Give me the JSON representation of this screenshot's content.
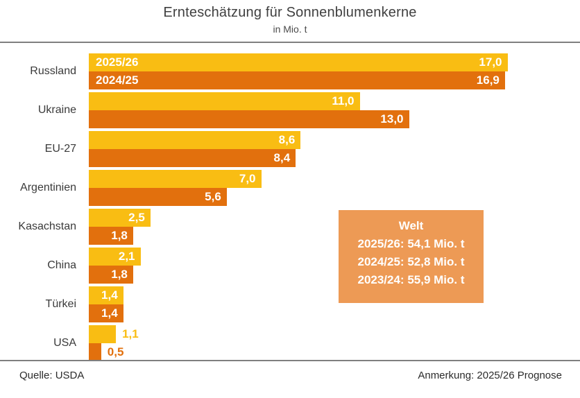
{
  "header": {
    "title": "Ernteschätzung für Sonnenblumenkerne",
    "subtitle": "in Mio. t"
  },
  "chart_data": {
    "type": "bar",
    "orientation": "horizontal",
    "title": "Ernteschätzung für Sonnenblumenkerne",
    "subtitle": "in Mio. t",
    "unit": "Mio. t",
    "categories": [
      "Russland",
      "Ukraine",
      "EU-27",
      "Argentinien",
      "Kasachstan",
      "China",
      "Türkei",
      "USA"
    ],
    "series": [
      {
        "name": "2025/26",
        "color": "#f9bd13",
        "values": [
          17.0,
          11.0,
          8.6,
          7.0,
          2.5,
          2.1,
          1.4,
          1.1
        ],
        "labels": [
          "17,0",
          "11,0",
          "8,6",
          "7,0",
          "2,5",
          "2,1",
          "1,4",
          "1,1"
        ]
      },
      {
        "name": "2024/25",
        "color": "#e2700d",
        "values": [
          16.9,
          13.0,
          8.4,
          5.6,
          1.8,
          1.8,
          1.4,
          0.5
        ],
        "labels": [
          "16,9",
          "13,0",
          "8,4",
          "5,6",
          "1,8",
          "1,8",
          "1,4",
          "0,5"
        ]
      }
    ],
    "xlim": [
      0,
      20
    ],
    "grid": false,
    "legend": "series names printed inside first category bars",
    "value_labels": "at bar end, white inside bar; in series color outside when bar too short"
  },
  "annotation_box": {
    "title": "Welt",
    "lines": [
      "2025/26: 54,1 Mio. t",
      "2024/25: 52,8 Mio. t",
      "2023/24: 55,9 Mio. t"
    ],
    "background": "#ed9a55"
  },
  "footer": {
    "source": "Quelle: USDA",
    "note": "Anmerkung: 2025/26 Prognose"
  },
  "colors": {
    "series_2025_26": "#f9bd13",
    "series_2024_25": "#e2700d",
    "annotation_background": "#ed9a55",
    "rule": "#7f7f7f",
    "text": "#3a3a3a"
  }
}
